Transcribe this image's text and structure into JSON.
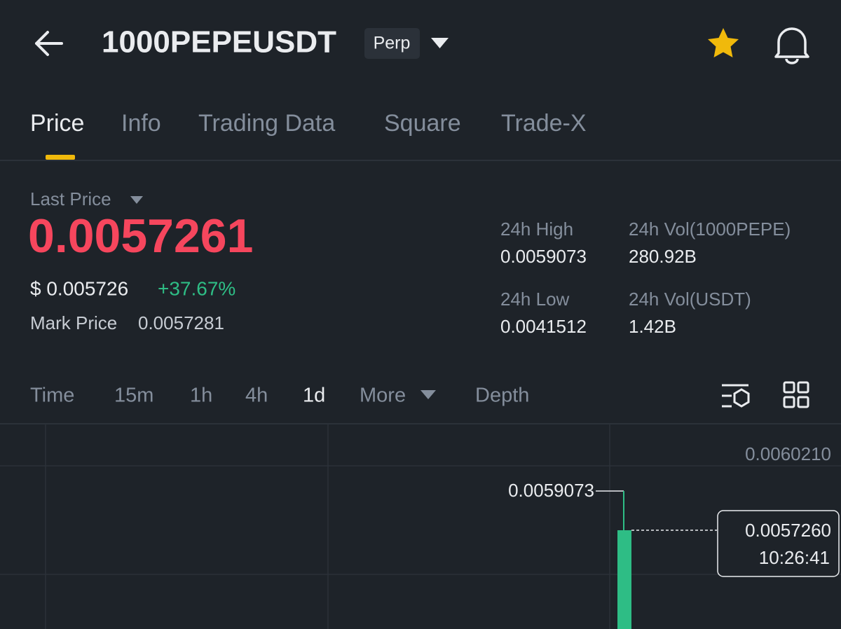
{
  "header": {
    "title": "1000PEPEUSDT",
    "badge": "Perp"
  },
  "tabs": [
    "Price",
    "Info",
    "Trading Data",
    "Square",
    "Trade-X"
  ],
  "price": {
    "label": "Last Price",
    "last": "0.0057261",
    "usd": "$ 0.005726",
    "change": "+37.67%",
    "mark_label": "Mark Price",
    "mark_value": "0.0057281"
  },
  "stats": [
    {
      "label": "24h High",
      "value": "0.0059073"
    },
    {
      "label": "24h Vol(1000PEPE)",
      "value": "280.92B"
    },
    {
      "label": "24h Low",
      "value": "0.0041512"
    },
    {
      "label": "24h Vol(USDT)",
      "value": "1.42B"
    }
  ],
  "intervals": [
    "Time",
    "15m",
    "1h",
    "4h",
    "1d",
    "More",
    "Depth"
  ],
  "chart": {
    "axis_label": "0.0060210",
    "high_label": "0.0059073",
    "current_price": "0.0057260",
    "time": "10:26:41"
  }
}
